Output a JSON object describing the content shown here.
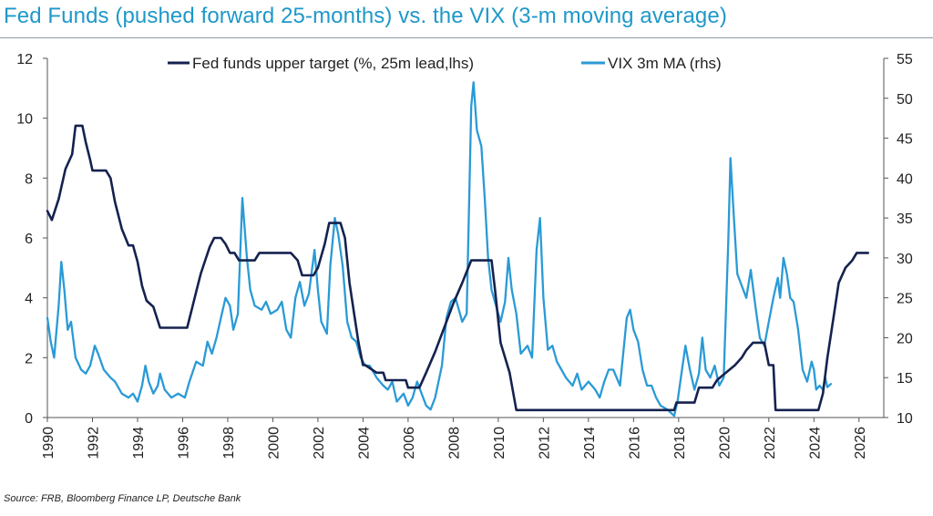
{
  "title": "Fed Funds (pushed forward 25-months) vs. the VIX (3-m moving average)",
  "source": "Source: FRB, Bloomberg Finance LP, Deutsche Bank",
  "colors": {
    "fed": "#15224f",
    "vix": "#2a9ad6",
    "title": "#1f98c9"
  },
  "chart_data": {
    "type": "line",
    "x_ticks": [
      "1990",
      "1992",
      "1994",
      "1996",
      "1998",
      "2000",
      "2002",
      "2004",
      "2006",
      "2008",
      "2010",
      "2012",
      "2014",
      "2016",
      "2018",
      "2020",
      "2022",
      "2024",
      "2026"
    ],
    "xlim": [
      1990,
      2027.1
    ],
    "y_left": {
      "lim": [
        0,
        12
      ],
      "ticks": [
        "0",
        "2",
        "4",
        "6",
        "8",
        "10",
        "12"
      ]
    },
    "y_right": {
      "lim": [
        10,
        55
      ],
      "ticks": [
        "10",
        "15",
        "20",
        "25",
        "30",
        "35",
        "40",
        "45",
        "50",
        "55"
      ]
    },
    "legend_position": "top-center",
    "grid": false,
    "series": [
      {
        "name": "Fed funds upper target (%, 25m lead,lhs)",
        "axis": "left",
        "color": "#15224f",
        "points": [
          [
            1990.0,
            6.9
          ],
          [
            1990.2,
            6.6
          ],
          [
            1990.5,
            7.3
          ],
          [
            1990.8,
            8.3
          ],
          [
            1991.1,
            8.8
          ],
          [
            1991.25,
            9.75
          ],
          [
            1991.55,
            9.75
          ],
          [
            1991.7,
            9.2
          ],
          [
            1991.9,
            8.6
          ],
          [
            1992.0,
            8.25
          ],
          [
            1992.6,
            8.25
          ],
          [
            1992.8,
            8.0
          ],
          [
            1993.0,
            7.2
          ],
          [
            1993.3,
            6.3
          ],
          [
            1993.6,
            5.75
          ],
          [
            1993.8,
            5.75
          ],
          [
            1994.0,
            5.2
          ],
          [
            1994.2,
            4.4
          ],
          [
            1994.4,
            3.9
          ],
          [
            1994.7,
            3.7
          ],
          [
            1995.0,
            3.0
          ],
          [
            1995.3,
            3.0
          ],
          [
            1996.2,
            3.0
          ],
          [
            1996.4,
            3.6
          ],
          [
            1996.6,
            4.2
          ],
          [
            1996.8,
            4.8
          ],
          [
            1997.0,
            5.25
          ],
          [
            1997.2,
            5.7
          ],
          [
            1997.4,
            6.0
          ],
          [
            1997.7,
            6.0
          ],
          [
            1997.9,
            5.8
          ],
          [
            1998.1,
            5.5
          ],
          [
            1998.3,
            5.5
          ],
          [
            1998.5,
            5.25
          ],
          [
            1999.2,
            5.25
          ],
          [
            1999.4,
            5.5
          ],
          [
            2000.8,
            5.5
          ],
          [
            2001.1,
            5.25
          ],
          [
            2001.3,
            4.75
          ],
          [
            2001.8,
            4.75
          ],
          [
            2002.0,
            5.0
          ],
          [
            2002.3,
            5.8
          ],
          [
            2002.5,
            6.5
          ],
          [
            2003.0,
            6.5
          ],
          [
            2003.2,
            6.0
          ],
          [
            2003.4,
            4.5
          ],
          [
            2003.6,
            3.5
          ],
          [
            2003.8,
            2.5
          ],
          [
            2004.0,
            1.75
          ],
          [
            2004.1,
            1.75
          ],
          [
            2004.6,
            1.5
          ],
          [
            2004.9,
            1.5
          ],
          [
            2005.0,
            1.25
          ],
          [
            2005.9,
            1.25
          ],
          [
            2006.0,
            1.0
          ],
          [
            2006.5,
            1.0
          ],
          [
            2006.8,
            1.5
          ],
          [
            2007.2,
            2.2
          ],
          [
            2007.6,
            3.0
          ],
          [
            2008.0,
            3.8
          ],
          [
            2008.4,
            4.5
          ],
          [
            2008.8,
            5.25
          ],
          [
            2009.7,
            5.25
          ],
          [
            2009.85,
            4.3
          ],
          [
            2010.1,
            2.5
          ],
          [
            2010.5,
            1.5
          ],
          [
            2010.8,
            0.25
          ],
          [
            2017.8,
            0.25
          ],
          [
            2017.9,
            0.5
          ],
          [
            2018.7,
            0.5
          ],
          [
            2018.9,
            1.0
          ],
          [
            2019.5,
            1.0
          ],
          [
            2019.7,
            1.25
          ],
          [
            2020.1,
            1.5
          ],
          [
            2020.5,
            1.75
          ],
          [
            2020.8,
            2.0
          ],
          [
            2021.0,
            2.25
          ],
          [
            2021.3,
            2.5
          ],
          [
            2021.8,
            2.5
          ],
          [
            2022.0,
            1.75
          ],
          [
            2022.2,
            1.75
          ],
          [
            2022.3,
            0.25
          ],
          [
            2024.2,
            0.25
          ],
          [
            2024.4,
            0.8
          ],
          [
            2024.6,
            2.0
          ],
          [
            2024.9,
            3.5
          ],
          [
            2025.1,
            4.5
          ],
          [
            2025.4,
            5.0
          ],
          [
            2025.7,
            5.25
          ],
          [
            2025.9,
            5.5
          ],
          [
            2026.4,
            5.5
          ]
        ]
      },
      {
        "name": "VIX 3m MA (rhs)",
        "axis": "right",
        "color": "#2a9ad6",
        "points": [
          [
            1990.0,
            22.5
          ],
          [
            1990.15,
            19.5
          ],
          [
            1990.3,
            17.5
          ],
          [
            1990.5,
            24.0
          ],
          [
            1990.62,
            29.5
          ],
          [
            1990.75,
            26.0
          ],
          [
            1990.9,
            21.0
          ],
          [
            1991.05,
            22.0
          ],
          [
            1991.25,
            17.5
          ],
          [
            1991.5,
            16.0
          ],
          [
            1991.7,
            15.5
          ],
          [
            1991.9,
            16.5
          ],
          [
            1992.1,
            19.0
          ],
          [
            1992.25,
            18.0
          ],
          [
            1992.5,
            16.0
          ],
          [
            1992.8,
            15.0
          ],
          [
            1993.0,
            14.5
          ],
          [
            1993.3,
            13.0
          ],
          [
            1993.6,
            12.5
          ],
          [
            1993.8,
            13.0
          ],
          [
            1994.0,
            12.0
          ],
          [
            1994.2,
            14.0
          ],
          [
            1994.35,
            16.5
          ],
          [
            1994.5,
            14.5
          ],
          [
            1994.7,
            13.0
          ],
          [
            1994.9,
            14.0
          ],
          [
            1995.0,
            15.5
          ],
          [
            1995.2,
            13.5
          ],
          [
            1995.5,
            12.5
          ],
          [
            1995.8,
            13.0
          ],
          [
            1996.1,
            12.5
          ],
          [
            1996.3,
            14.5
          ],
          [
            1996.6,
            17.0
          ],
          [
            1996.9,
            16.5
          ],
          [
            1997.1,
            19.5
          ],
          [
            1997.3,
            18.0
          ],
          [
            1997.5,
            20.0
          ],
          [
            1997.7,
            22.5
          ],
          [
            1997.9,
            25.0
          ],
          [
            1998.1,
            24.0
          ],
          [
            1998.25,
            21.0
          ],
          [
            1998.45,
            23.0
          ],
          [
            1998.65,
            37.5
          ],
          [
            1998.85,
            30.0
          ],
          [
            1999.0,
            26.0
          ],
          [
            1999.2,
            24.0
          ],
          [
            1999.5,
            23.5
          ],
          [
            1999.7,
            24.5
          ],
          [
            1999.9,
            23.0
          ],
          [
            2000.2,
            23.5
          ],
          [
            2000.4,
            24.5
          ],
          [
            2000.6,
            21.0
          ],
          [
            2000.8,
            20.0
          ],
          [
            2001.0,
            25.0
          ],
          [
            2001.2,
            27.0
          ],
          [
            2001.4,
            24.0
          ],
          [
            2001.6,
            25.5
          ],
          [
            2001.85,
            31.0
          ],
          [
            2002.0,
            26.0
          ],
          [
            2002.15,
            22.0
          ],
          [
            2002.4,
            20.5
          ],
          [
            2002.55,
            29.0
          ],
          [
            2002.75,
            35.0
          ],
          [
            2002.9,
            33.0
          ],
          [
            2003.1,
            29.0
          ],
          [
            2003.3,
            22.0
          ],
          [
            2003.5,
            20.0
          ],
          [
            2003.7,
            19.5
          ],
          [
            2003.9,
            17.5
          ],
          [
            2004.1,
            16.5
          ],
          [
            2004.3,
            16.5
          ],
          [
            2004.6,
            15.0
          ],
          [
            2004.9,
            14.0
          ],
          [
            2005.1,
            13.5
          ],
          [
            2005.3,
            14.5
          ],
          [
            2005.5,
            12.0
          ],
          [
            2005.8,
            13.0
          ],
          [
            2006.0,
            11.5
          ],
          [
            2006.2,
            12.5
          ],
          [
            2006.4,
            14.5
          ],
          [
            2006.6,
            13.0
          ],
          [
            2006.8,
            11.5
          ],
          [
            2007.0,
            11.0
          ],
          [
            2007.2,
            12.5
          ],
          [
            2007.5,
            16.5
          ],
          [
            2007.7,
            22.5
          ],
          [
            2007.9,
            24.5
          ],
          [
            2008.1,
            25.0
          ],
          [
            2008.4,
            22.0
          ],
          [
            2008.6,
            23.0
          ],
          [
            2008.8,
            49.0
          ],
          [
            2008.9,
            52.0
          ],
          [
            2009.05,
            46.0
          ],
          [
            2009.25,
            44.0
          ],
          [
            2009.4,
            37.5
          ],
          [
            2009.55,
            30.0
          ],
          [
            2009.7,
            26.0
          ],
          [
            2009.9,
            24.0
          ],
          [
            2010.1,
            22.0
          ],
          [
            2010.3,
            24.5
          ],
          [
            2010.45,
            30.0
          ],
          [
            2010.6,
            26.0
          ],
          [
            2010.8,
            23.0
          ],
          [
            2011.0,
            18.0
          ],
          [
            2011.3,
            19.0
          ],
          [
            2011.5,
            17.5
          ],
          [
            2011.7,
            31.0
          ],
          [
            2011.85,
            35.0
          ],
          [
            2012.0,
            25.0
          ],
          [
            2012.2,
            18.5
          ],
          [
            2012.4,
            19.0
          ],
          [
            2012.6,
            17.0
          ],
          [
            2012.8,
            16.0
          ],
          [
            2013.0,
            15.0
          ],
          [
            2013.3,
            14.0
          ],
          [
            2013.5,
            15.5
          ],
          [
            2013.7,
            13.5
          ],
          [
            2014.0,
            14.5
          ],
          [
            2014.3,
            13.5
          ],
          [
            2014.5,
            12.5
          ],
          [
            2014.7,
            14.5
          ],
          [
            2014.9,
            16.0
          ],
          [
            2015.1,
            16.0
          ],
          [
            2015.4,
            14.0
          ],
          [
            2015.7,
            22.5
          ],
          [
            2015.85,
            23.5
          ],
          [
            2016.0,
            21.0
          ],
          [
            2016.2,
            19.5
          ],
          [
            2016.4,
            16.0
          ],
          [
            2016.6,
            14.0
          ],
          [
            2016.8,
            14.0
          ],
          [
            2017.0,
            12.5
          ],
          [
            2017.2,
            11.5
          ],
          [
            2017.5,
            11.0
          ],
          [
            2017.8,
            10.2
          ],
          [
            2017.95,
            12.0
          ],
          [
            2018.1,
            15.0
          ],
          [
            2018.3,
            19.0
          ],
          [
            2018.5,
            16.0
          ],
          [
            2018.7,
            13.5
          ],
          [
            2018.9,
            15.5
          ],
          [
            2019.05,
            20.0
          ],
          [
            2019.2,
            16.0
          ],
          [
            2019.4,
            15.0
          ],
          [
            2019.6,
            16.5
          ],
          [
            2019.8,
            14.0
          ],
          [
            2020.0,
            15.0
          ],
          [
            2020.2,
            32.0
          ],
          [
            2020.3,
            42.5
          ],
          [
            2020.45,
            35.0
          ],
          [
            2020.6,
            28.0
          ],
          [
            2020.8,
            26.5
          ],
          [
            2021.0,
            25.0
          ],
          [
            2021.2,
            28.5
          ],
          [
            2021.4,
            24.0
          ],
          [
            2021.6,
            20.0
          ],
          [
            2021.8,
            19.0
          ],
          [
            2022.0,
            22.0
          ],
          [
            2022.2,
            25.0
          ],
          [
            2022.4,
            27.5
          ],
          [
            2022.5,
            25.0
          ],
          [
            2022.65,
            30.0
          ],
          [
            2022.8,
            28.0
          ],
          [
            2022.95,
            25.0
          ],
          [
            2023.1,
            24.5
          ],
          [
            2023.3,
            21.0
          ],
          [
            2023.5,
            16.0
          ],
          [
            2023.7,
            14.5
          ],
          [
            2023.9,
            17.0
          ],
          [
            2024.0,
            16.0
          ],
          [
            2024.1,
            13.5
          ],
          [
            2024.25,
            14.0
          ],
          [
            2024.4,
            13.5
          ],
          [
            2024.5,
            15.0
          ],
          [
            2024.6,
            13.8
          ],
          [
            2024.75,
            14.2
          ]
        ]
      }
    ]
  }
}
